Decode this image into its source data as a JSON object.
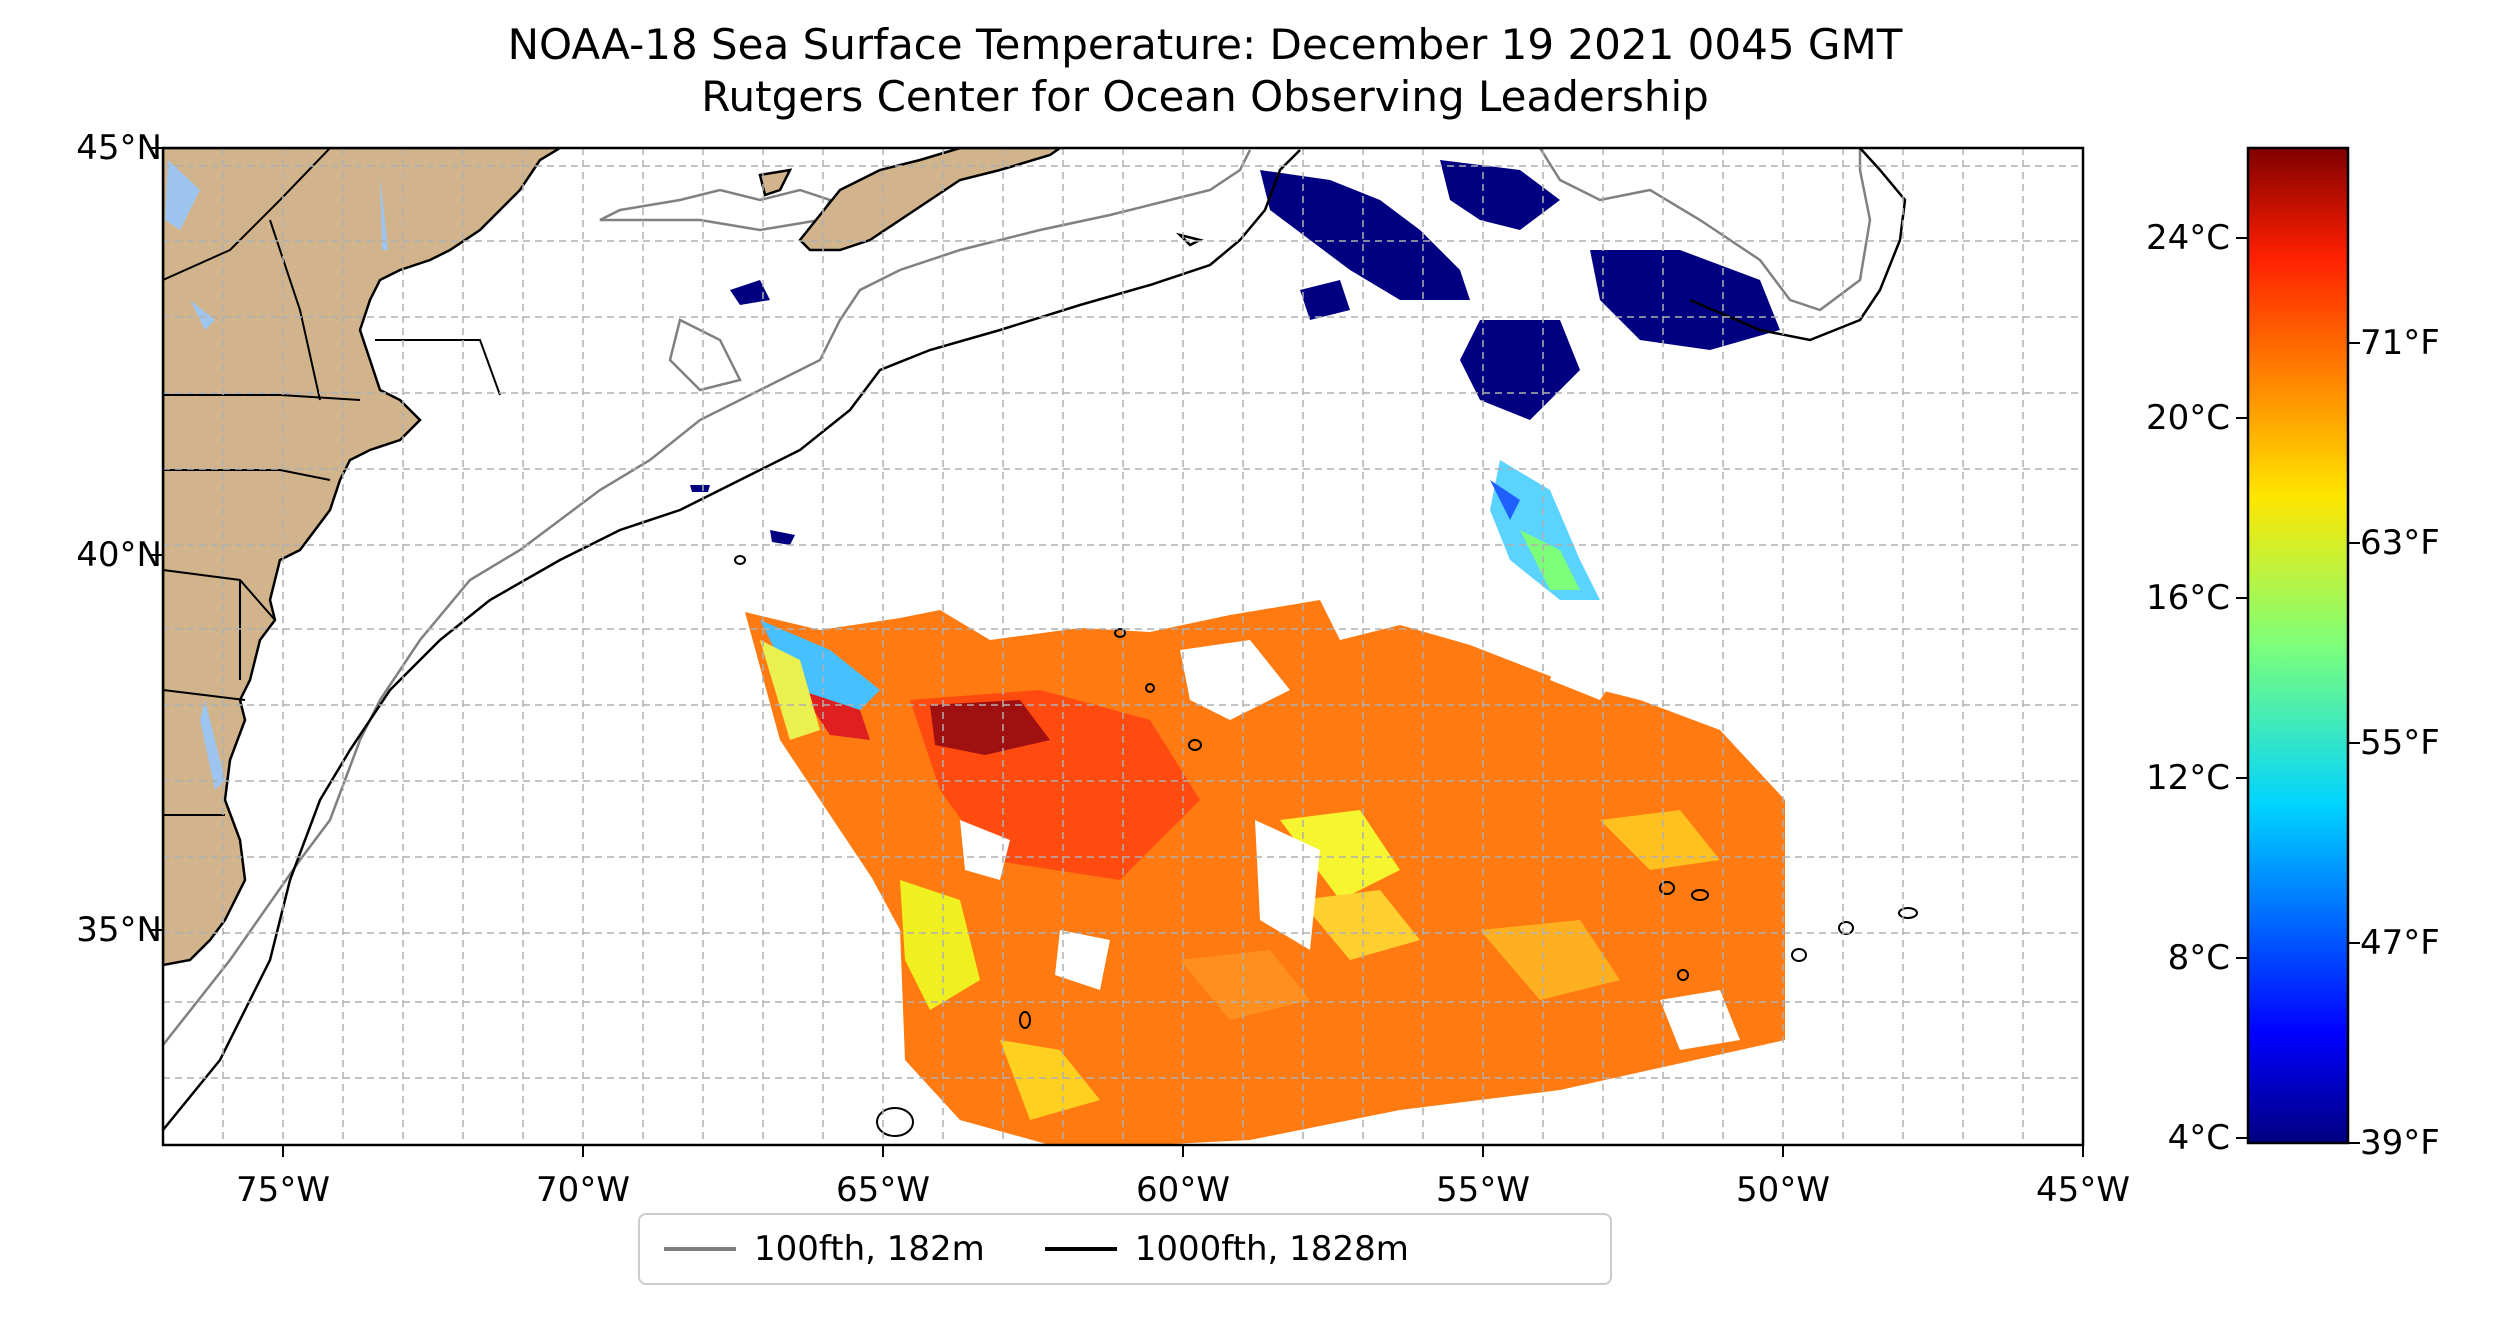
{
  "title": "NOAA-18 Sea Surface Temperature: December 19 2021 0045 GMT",
  "subtitle": "Rutgers Center for Ocean Observing Leadership",
  "map": {
    "lat_labels": [
      "45°N",
      "40°N",
      "35°N"
    ],
    "lon_labels": [
      "75°W",
      "70°W",
      "65°W",
      "60°W",
      "55°W",
      "50°W",
      "45°W"
    ],
    "extent": {
      "lon_min": -77,
      "lon_max": -45,
      "lat_min": 32.4,
      "lat_max": 45
    },
    "land_color": "#d2b48c",
    "water_color": "#9ec5f0"
  },
  "colorbar": {
    "celsius_labels": [
      "24°C",
      "20°C",
      "16°C",
      "12°C",
      "8°C",
      "4°C"
    ],
    "fahrenheit_labels": [
      "71°F",
      "63°F",
      "55°F",
      "47°F",
      "39°F"
    ],
    "colormap": "jet",
    "range_celsius": [
      4,
      26
    ]
  },
  "legend": [
    {
      "label": "100fth, 182m",
      "color": "#808080"
    },
    {
      "label": "1000fth, 1828m",
      "color": "#000000"
    }
  ]
}
